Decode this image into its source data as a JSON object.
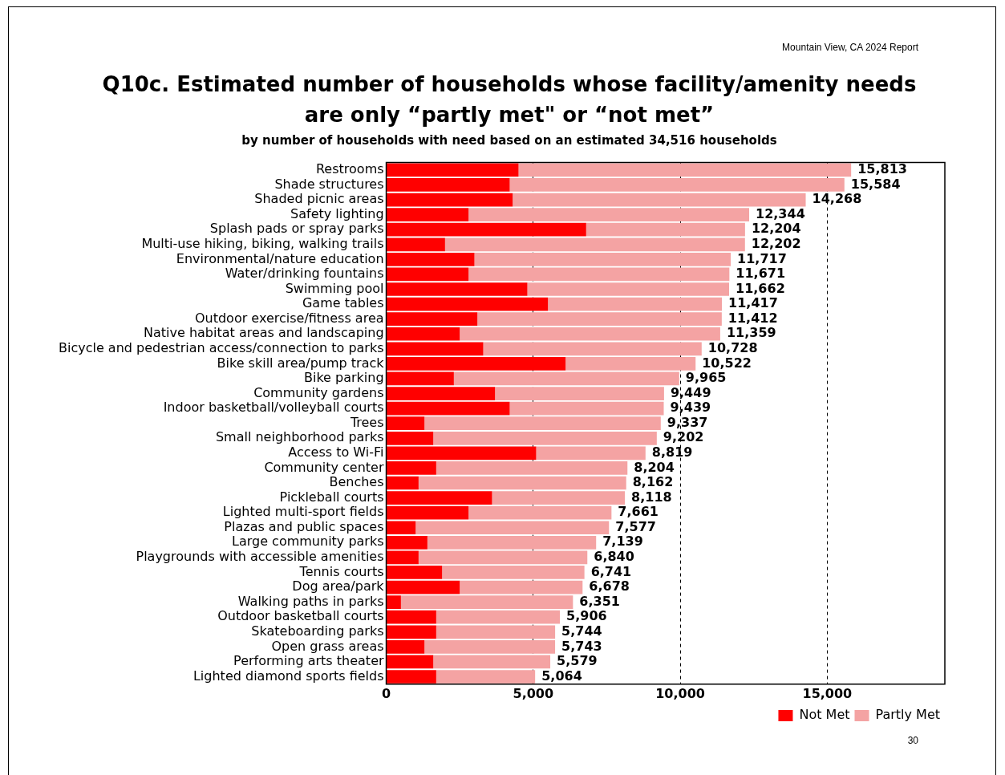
{
  "chart_data": {
    "type": "bar",
    "orientation": "horizontal",
    "stacked": true,
    "title": "Q10c. Estimated number of households whose facility/amenity needs are only “partly met\" or “not met”",
    "subtitle": "by number of households with need based on an estimated 34,516 households",
    "annotations": [
      "Mountain View, CA 2024 Report",
      "30"
    ],
    "categories": [
      "Restrooms",
      "Shade structures",
      "Shaded picnic areas",
      "Safety lighting",
      "Splash pads or spray parks",
      "Multi-use hiking, biking, walking trails",
      "Environmental/nature education",
      "Water/drinking fountains",
      "Swimming pool",
      "Game tables",
      "Outdoor exercise/fitness area",
      "Native habitat areas and landscaping",
      "Bicycle and pedestrian access/connection to parks",
      "Bike skill area/pump track",
      "Bike parking",
      "Community gardens",
      "Indoor basketball/volleyball courts",
      "Trees",
      "Small neighborhood parks",
      "Access to Wi-Fi",
      "Community center",
      "Benches",
      "Pickleball courts",
      "Lighted multi-sport fields",
      "Plazas and public spaces",
      "Large community parks",
      "Playgrounds with accessible amenities",
      "Tennis courts",
      "Dog area/park",
      "Walking paths in parks",
      "Outdoor basketball courts",
      "Skateboarding parks",
      "Open grass areas",
      "Performing arts theater",
      "Lighted diamond sports fields"
    ],
    "series": [
      {
        "name": "Not Met",
        "color": "#ff0000",
        "values": [
          4500,
          4200,
          4300,
          2800,
          6800,
          2000,
          3000,
          2800,
          4800,
          5500,
          3100,
          2500,
          3300,
          6100,
          2300,
          3700,
          4200,
          1300,
          1600,
          5100,
          1700,
          1100,
          3600,
          2800,
          1000,
          1400,
          1100,
          1900,
          2500,
          500,
          1700,
          1700,
          1300,
          1600,
          1700
        ]
      },
      {
        "name": "Partly Met",
        "color": "#f4a3a3",
        "values": [
          11313,
          11384,
          9968,
          9544,
          5404,
          10202,
          8717,
          8871,
          6862,
          5917,
          8312,
          8859,
          7428,
          4422,
          7665,
          5749,
          5239,
          8037,
          7602,
          3719,
          6504,
          7062,
          4518,
          4861,
          6577,
          5739,
          5740,
          4841,
          4178,
          5851,
          4206,
          4044,
          4443,
          3979,
          3364
        ]
      }
    ],
    "totals": [
      "15,813",
      "15,584",
      "14,268",
      "12,344",
      "12,204",
      "12,202",
      "11,717",
      "11,671",
      "11,662",
      "11,417",
      "11,412",
      "11,359",
      "10,728",
      "10,522",
      "9,965",
      "9,449",
      "9,439",
      "9,337",
      "9,202",
      "8,819",
      "8,204",
      "8,162",
      "8,118",
      "7,661",
      "7,577",
      "7,139",
      "6,840",
      "6,741",
      "6,678",
      "6,351",
      "5,906",
      "5,744",
      "5,743",
      "5,579",
      "5,064"
    ],
    "xlim": [
      0,
      19000
    ],
    "xticks": [
      0,
      {
        "value": 5000,
        "label": "5,000"
      },
      {
        "value": 10000,
        "label": "10,000"
      },
      {
        "value": 15000,
        "label": "15,000"
      }
    ],
    "grid": "x",
    "legend": "bottom right"
  }
}
